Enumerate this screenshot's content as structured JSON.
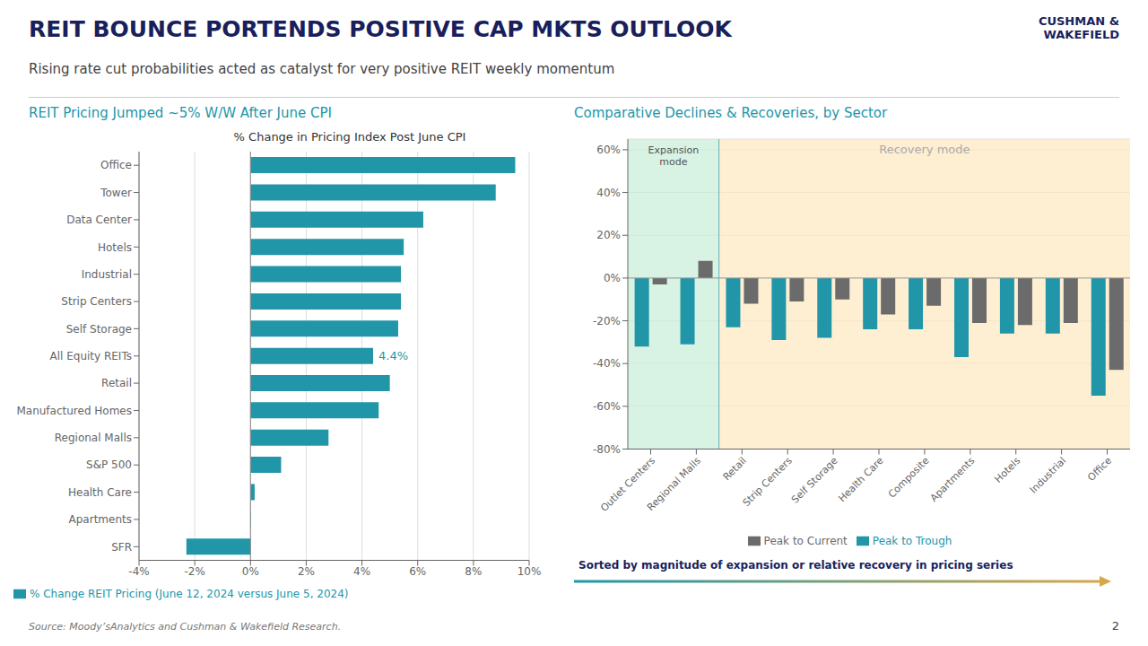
{
  "title": "REIT BOUNCE PORTENDS POSITIVE CAP MKTS OUTLOOK",
  "subtitle": "Rising rate cut probabilities acted as catalyst for very positive REIT weekly momentum",
  "annotations": [
    {
      "text": "CUSHMAN &\nWAKEFIELD"
    },
    {
      "text": "Source: Moody’sAnalytics and Cushman & Wakefield Research."
    },
    {
      "text": "2"
    }
  ],
  "chart_data": [
    {
      "type": "bar",
      "orientation": "horizontal",
      "title": "REIT Pricing Jumped ~5% W/W After June CPI",
      "subtitle": "% Change in Pricing Index Post June CPI",
      "categories": [
        "Office",
        "Tower",
        "Data Center",
        "Hotels",
        "Industrial",
        "Strip Centers",
        "Self Storage",
        "All Equity REITs",
        "Retail",
        "Manufactured Homes",
        "Regional Malls",
        "S&P 500",
        "Health Care",
        "Apartments",
        "SFR"
      ],
      "series": [
        {
          "name": "% Change REIT Pricing (June 12, 2024 versus June 5, 2024)",
          "color": "#2196a8",
          "values": [
            9.5,
            8.8,
            6.2,
            5.5,
            5.4,
            5.4,
            5.3,
            4.4,
            5.0,
            4.6,
            2.8,
            1.1,
            0.15,
            0.02,
            -2.3
          ]
        }
      ],
      "xlim": [
        -4,
        10
      ],
      "xticks": [
        {
          "value": -4,
          "label": "-4%"
        },
        {
          "value": -2,
          "label": "-2%"
        },
        {
          "value": 0,
          "label": "0%"
        },
        {
          "value": 2,
          "label": "2%"
        },
        {
          "value": 4,
          "label": "4%"
        },
        {
          "value": 6,
          "label": "6%"
        },
        {
          "value": 8,
          "label": "8%"
        },
        {
          "value": 10,
          "label": "10%"
        }
      ],
      "grid": true,
      "legend": "lower left",
      "annotations": [
        {
          "category": "All Equity REITs",
          "value": 4.4,
          "text": "4.4%",
          "color": "#2196a8"
        }
      ]
    },
    {
      "type": "bar",
      "title": "Comparative Declines & Recoveries, by Sector",
      "categories": [
        "Outlet Centers",
        "Regional Malls",
        "Retail",
        "Strip Centers",
        "Self Storage",
        "Health Care",
        "Composite",
        "Apartments",
        "Hotels",
        "Industrial",
        "Office"
      ],
      "series": [
        {
          "name": "Peak to Trough",
          "color": "#2196a8",
          "values": [
            -32,
            -31,
            -23,
            -29,
            -28,
            -24,
            -24,
            -37,
            -26,
            -26,
            -55
          ]
        },
        {
          "name": "Peak to Current",
          "color": "#6b6b6b",
          "values": [
            -3,
            8,
            -12,
            -11,
            -10,
            -17,
            -13,
            -21,
            -22,
            -21,
            -43
          ]
        }
      ],
      "ylim": [
        -80,
        65
      ],
      "yticks": [
        {
          "value": -80,
          "label": "-80%"
        },
        {
          "value": -60,
          "label": "-60%"
        },
        {
          "value": -40,
          "label": "-40%"
        },
        {
          "value": -20,
          "label": "-20%"
        },
        {
          "value": 0,
          "label": "0%"
        },
        {
          "value": 20,
          "label": "20%"
        },
        {
          "value": 40,
          "label": "40%"
        },
        {
          "value": 60,
          "label": "60%"
        }
      ],
      "grid": true,
      "legend": "bottom",
      "zones": [
        {
          "label": "Expansion\nmode",
          "from": "Outlet Centers",
          "to": "Regional Malls",
          "color": "#c8edd8"
        },
        {
          "label": "Recovery mode",
          "from": "Retail",
          "to": "Office",
          "color": "#fde8c0"
        }
      ],
      "annotations": [
        {
          "text": "Sorted by magnitude of expansion or relative recovery in pricing series",
          "colors": [
            "#2196a8",
            "#d4a84b"
          ]
        }
      ]
    }
  ]
}
